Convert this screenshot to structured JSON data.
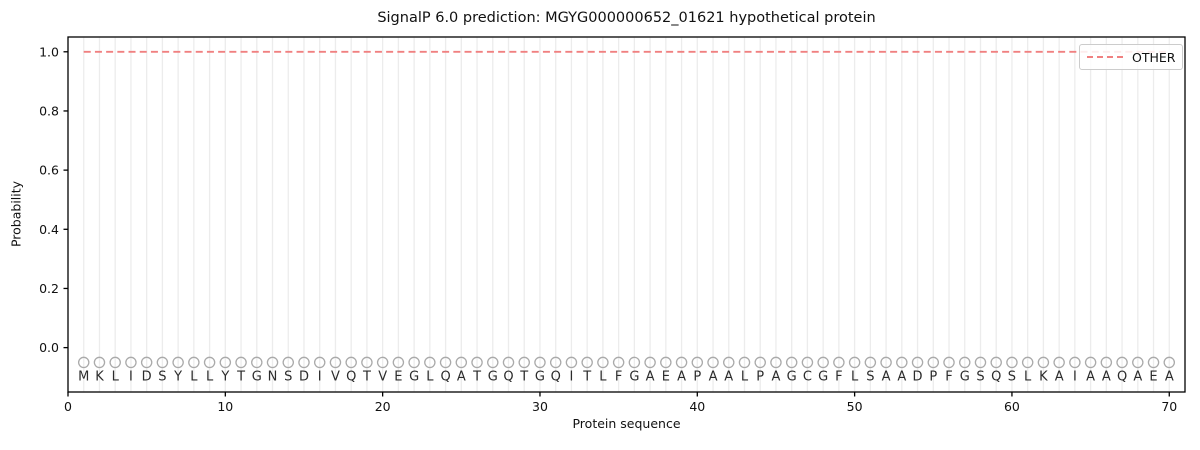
{
  "chart_data": {
    "type": "line",
    "title": "SignalP 6.0 prediction: MGYG000000652_01621 hypothetical protein",
    "xlabel": "Protein sequence",
    "ylabel": "Probability",
    "xlim": [
      0,
      71
    ],
    "ylim": [
      -0.15,
      1.05
    ],
    "xticks": [
      0,
      10,
      20,
      30,
      40,
      50,
      60,
      70
    ],
    "ytick_labels": [
      "0.0",
      "0.2",
      "0.4",
      "0.6",
      "0.8",
      "1.0"
    ],
    "yticks": [
      0.0,
      0.2,
      0.4,
      0.6,
      0.8,
      1.0
    ],
    "grid": "vertical gridline at every residue position 1-70, no horizontal gridlines",
    "legend": {
      "position": "upper right",
      "entries": [
        {
          "label": "OTHER",
          "color": "#f08080",
          "linestyle": "dashed"
        }
      ]
    },
    "series": [
      {
        "name": "OTHER",
        "type": "line",
        "linestyle": "dashed",
        "color": "#f08080",
        "x_start": 1,
        "x_end": 70,
        "y_const": 1.0,
        "note": "flat dashed line at probability 1.0 across all 70 residues"
      }
    ],
    "sequence": {
      "residues": "MKLIDSYLLYTGNSDIVQTVEGLQATGQTGQITLFGAEAPAALPAGCGFLSAADPFGSQSLKAIAAQAEA",
      "length": 70,
      "first_position": 1,
      "marker": {
        "shape": "open-circle",
        "y": -0.05,
        "color": "#aaaaaa"
      },
      "letter_y": -0.095,
      "letter_color": "#2b2b2b"
    },
    "colors": {
      "gridline": "#ececec",
      "spine": "#000000",
      "tick_text": "#111111",
      "accent_line": "#f08080"
    }
  }
}
